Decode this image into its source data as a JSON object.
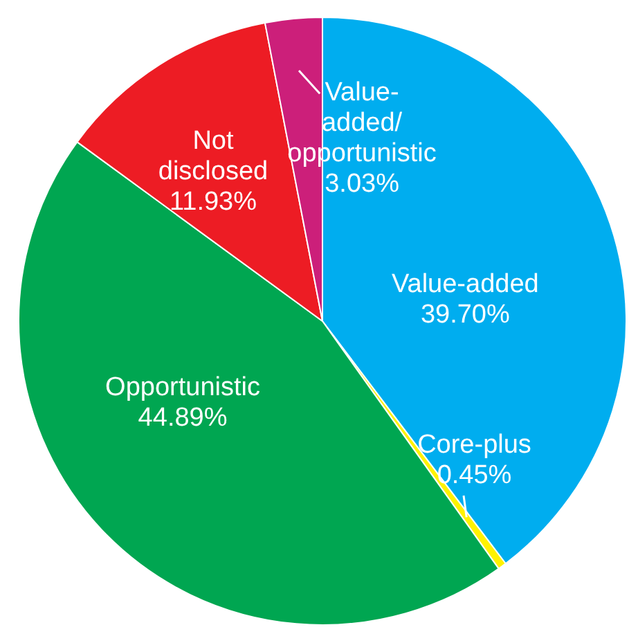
{
  "chart_data": {
    "type": "pie",
    "categories": [
      "Value-added",
      "Core-plus",
      "Opportunistic",
      "Not disclosed",
      "Value-added/opportunistic"
    ],
    "values": [
      39.7,
      0.45,
      44.89,
      11.93,
      3.03
    ],
    "value_labels": [
      "39.70%",
      "0.45%",
      "44.89%",
      "11.93%",
      "3.03%"
    ],
    "colors": [
      "#00adef",
      "#fff200",
      "#00a651",
      "#ed1c24",
      "#cc1f7a"
    ],
    "legend": false
  }
}
